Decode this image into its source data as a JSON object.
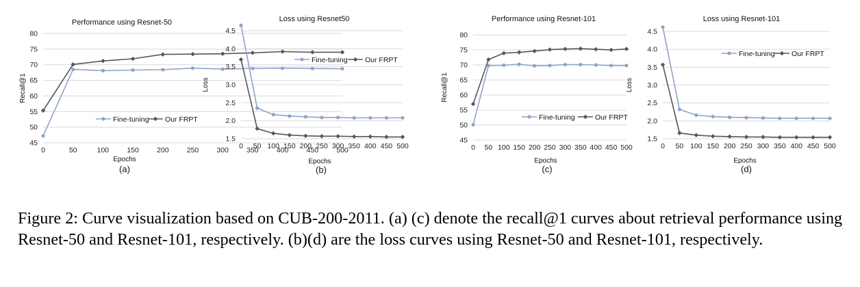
{
  "colors": {
    "fine_tuning": "#8EA4C8",
    "frpt": "#555555",
    "grid": "#D9D9D9"
  },
  "caption": "Figure 2: Curve visualization based on CUB-200-2011. (a) (c) denote the recall@1 curves about retrieval performance using Resnet-50 and Resnet-101, respectively. (b)(d) are the loss curves using Resnet-50 and Resnet-101, respectively.",
  "chart_data": [
    {
      "type": "line",
      "panel_label": "(a)",
      "title": "Performance using Resnet-50",
      "xlabel": "Epochs",
      "ylabel": "Recall@1",
      "x": [
        0,
        50,
        100,
        150,
        200,
        250,
        300,
        350,
        400,
        450,
        500
      ],
      "ylim": [
        45,
        80
      ],
      "yticks": [
        45,
        50,
        55,
        60,
        65,
        70,
        75,
        80
      ],
      "ytick_labels": [
        "45",
        "50",
        "55",
        "60",
        "65",
        "70",
        "75",
        "80"
      ],
      "grid": true,
      "legend_position": "lower-right",
      "series": [
        {
          "name": "Fine-tuning",
          "values": [
            47.2,
            68.5,
            68.1,
            68.3,
            68.4,
            68.9,
            68.6,
            68.8,
            68.9,
            68.8,
            68.7
          ]
        },
        {
          "name": "Our FRPT",
          "values": [
            55.3,
            70.1,
            71.2,
            71.9,
            73.3,
            73.4,
            73.5,
            73.8,
            74.2,
            74.0,
            74.0
          ]
        }
      ]
    },
    {
      "type": "line",
      "panel_label": "(b)",
      "title": "Loss using Resnet50",
      "xlabel": "Epochs",
      "ylabel": "Loss",
      "x": [
        0,
        50,
        100,
        150,
        200,
        250,
        300,
        350,
        400,
        450,
        500
      ],
      "ylim": [
        1.5,
        4.5
      ],
      "yticks": [
        1.5,
        2.0,
        2.5,
        3.0,
        3.5,
        4.0,
        4.5
      ],
      "ytick_labels": [
        "1.5",
        "2.0",
        "2.5",
        "3.0",
        "3.5",
        "4.0",
        "4.5"
      ],
      "grid": true,
      "legend_position": "upper-right",
      "series": [
        {
          "name": "Fine-tuning",
          "values": [
            4.65,
            2.35,
            2.17,
            2.13,
            2.11,
            2.09,
            2.09,
            2.08,
            2.08,
            2.08,
            2.08
          ]
        },
        {
          "name": "Our FRPT",
          "values": [
            3.7,
            1.78,
            1.65,
            1.6,
            1.58,
            1.57,
            1.57,
            1.56,
            1.56,
            1.55,
            1.55
          ]
        }
      ]
    },
    {
      "type": "line",
      "panel_label": "(c)",
      "title": "Performance using Resnet-101",
      "xlabel": "Epochs",
      "ylabel": "Recall@1",
      "x": [
        0,
        50,
        100,
        150,
        200,
        250,
        300,
        350,
        400,
        450,
        500
      ],
      "ylim": [
        45,
        80
      ],
      "yticks": [
        45,
        50,
        55,
        60,
        65,
        70,
        75,
        80
      ],
      "ytick_labels": [
        "45",
        "50",
        "55",
        "60",
        "65",
        "70",
        "75",
        "80"
      ],
      "grid": true,
      "legend_position": "lower-right",
      "series": [
        {
          "name": "Fine-tuning",
          "values": [
            50.1,
            69.8,
            69.9,
            70.2,
            69.7,
            69.8,
            70.1,
            70.1,
            70.0,
            69.8,
            69.8
          ]
        },
        {
          "name": "Our FRPT",
          "values": [
            57.0,
            71.8,
            73.9,
            74.2,
            74.6,
            75.1,
            75.3,
            75.4,
            75.2,
            75.0,
            75.3
          ]
        }
      ]
    },
    {
      "type": "line",
      "panel_label": "(d)",
      "title": "Loss using Resnet-101",
      "xlabel": "Epochs",
      "ylabel": "Loss",
      "x": [
        0,
        50,
        100,
        150,
        200,
        250,
        300,
        350,
        400,
        450,
        500
      ],
      "ylim": [
        1.5,
        4.5
      ],
      "yticks": [
        1.5,
        2.0,
        2.5,
        3.0,
        3.5,
        4.0,
        4.5
      ],
      "ytick_labels": [
        "1.5",
        "2.0",
        "2.5",
        "3.0",
        "3.5",
        "4.0",
        "4.5"
      ],
      "grid": true,
      "legend_position": "upper-right",
      "series": [
        {
          "name": "Fine-tuning",
          "values": [
            4.62,
            2.32,
            2.16,
            2.12,
            2.1,
            2.09,
            2.08,
            2.07,
            2.07,
            2.07,
            2.07
          ]
        },
        {
          "name": "Our FRPT",
          "values": [
            3.57,
            1.66,
            1.6,
            1.57,
            1.56,
            1.55,
            1.55,
            1.54,
            1.54,
            1.54,
            1.54
          ]
        }
      ]
    }
  ]
}
